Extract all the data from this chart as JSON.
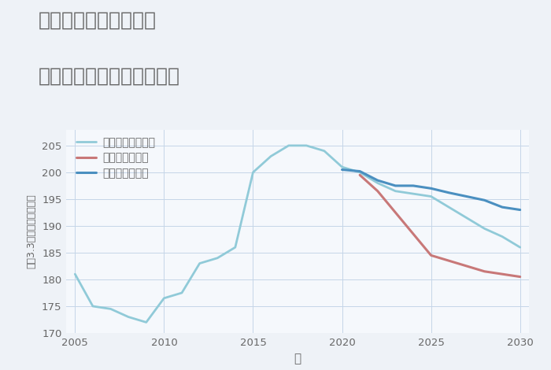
{
  "title_line1": "兵庫県西宮市上之町の",
  "title_line2": "中古マンションの価格推移",
  "xlabel": "年",
  "ylabel": "坪（3.3㎡）単価（万円）",
  "ylim": [
    170,
    208
  ],
  "xlim": [
    2004.5,
    2030.5
  ],
  "background_color": "#eef2f7",
  "plot_bg_color": "#f5f8fc",
  "grid_color": "#c5d5e8",
  "series": {
    "good": {
      "label": "グッドシナリオ",
      "color": "#4a8fc0",
      "linewidth": 2.2,
      "years": [
        2020,
        2021,
        2022,
        2023,
        2024,
        2025,
        2026,
        2027,
        2028,
        2029,
        2030
      ],
      "values": [
        200.5,
        200.2,
        198.5,
        197.5,
        197.5,
        197.0,
        196.2,
        195.5,
        194.8,
        193.5,
        193.0
      ]
    },
    "bad": {
      "label": "バッドシナリオ",
      "color": "#c87878",
      "linewidth": 2.2,
      "years": [
        2021,
        2022,
        2023,
        2024,
        2025,
        2026,
        2027,
        2028,
        2029,
        2030
      ],
      "values": [
        199.5,
        196.5,
        192.5,
        188.5,
        184.5,
        183.5,
        182.5,
        181.5,
        181.0,
        180.5
      ]
    },
    "normal": {
      "label": "ノーマルシナリオ",
      "color": "#90cad8",
      "linewidth": 2.0,
      "years": [
        2005,
        2006,
        2007,
        2008,
        2009,
        2010,
        2011,
        2012,
        2013,
        2014,
        2015,
        2016,
        2017,
        2018,
        2019,
        2020,
        2021,
        2022,
        2023,
        2024,
        2025,
        2026,
        2027,
        2028,
        2029,
        2030
      ],
      "values": [
        181.0,
        175.0,
        174.5,
        173.0,
        172.0,
        176.5,
        177.5,
        183.0,
        184.0,
        186.0,
        200.0,
        203.0,
        205.0,
        205.0,
        204.0,
        201.0,
        200.0,
        198.0,
        196.5,
        196.0,
        195.5,
        193.5,
        191.5,
        189.5,
        188.0,
        186.0
      ]
    }
  },
  "title_color": "#666666",
  "tick_color": "#666666",
  "title_fontsize": 18,
  "label_fontsize": 11,
  "legend_fontsize": 10,
  "xticks": [
    2005,
    2010,
    2015,
    2020,
    2025,
    2030
  ],
  "yticks": [
    170,
    175,
    180,
    185,
    190,
    195,
    200,
    205
  ]
}
